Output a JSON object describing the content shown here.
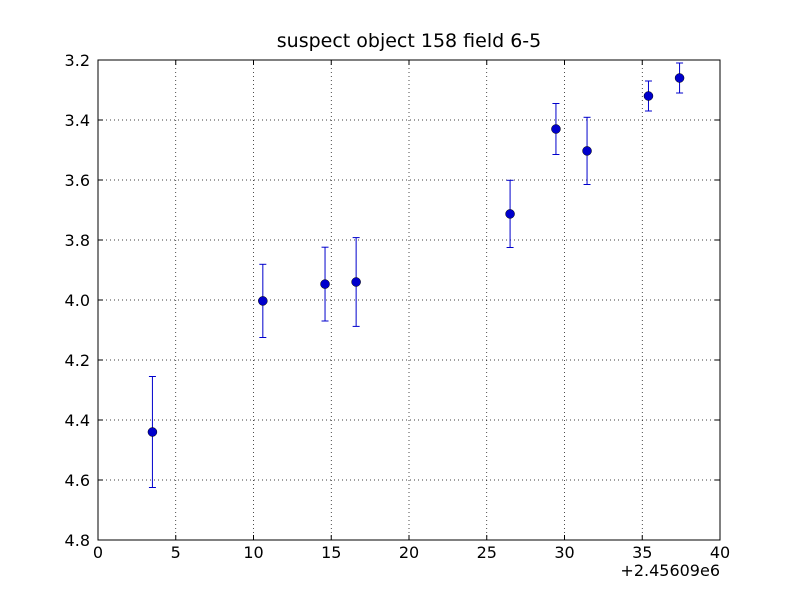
{
  "chart_data": {
    "type": "errorbar",
    "title": "suspect object 158 field 6-5",
    "x_offset_label": "+2.45609e6",
    "series": [
      {
        "color": "#0000cc",
        "x": [
          3.5,
          10.6,
          14.6,
          16.6,
          26.5,
          29.45,
          31.45,
          35.4,
          37.4
        ],
        "values": [
          4.44,
          4.003,
          3.947,
          3.94,
          3.713,
          3.43,
          3.503,
          3.32,
          3.26
        ],
        "errors": [
          0.185,
          0.122,
          0.123,
          0.148,
          0.112,
          0.085,
          0.112,
          0.05,
          0.05
        ]
      }
    ],
    "xlim": [
      0,
      40
    ],
    "xticks": [
      0,
      5,
      10,
      15,
      20,
      25,
      30,
      35,
      40
    ],
    "ylim": [
      3.2,
      4.8
    ],
    "y_inverted": true,
    "yticks": [
      3.2,
      3.4,
      3.6,
      3.8,
      {
        "value": 4.0,
        "label": "4.0"
      },
      4.2,
      4.4,
      4.6,
      4.8
    ],
    "grid": true
  }
}
